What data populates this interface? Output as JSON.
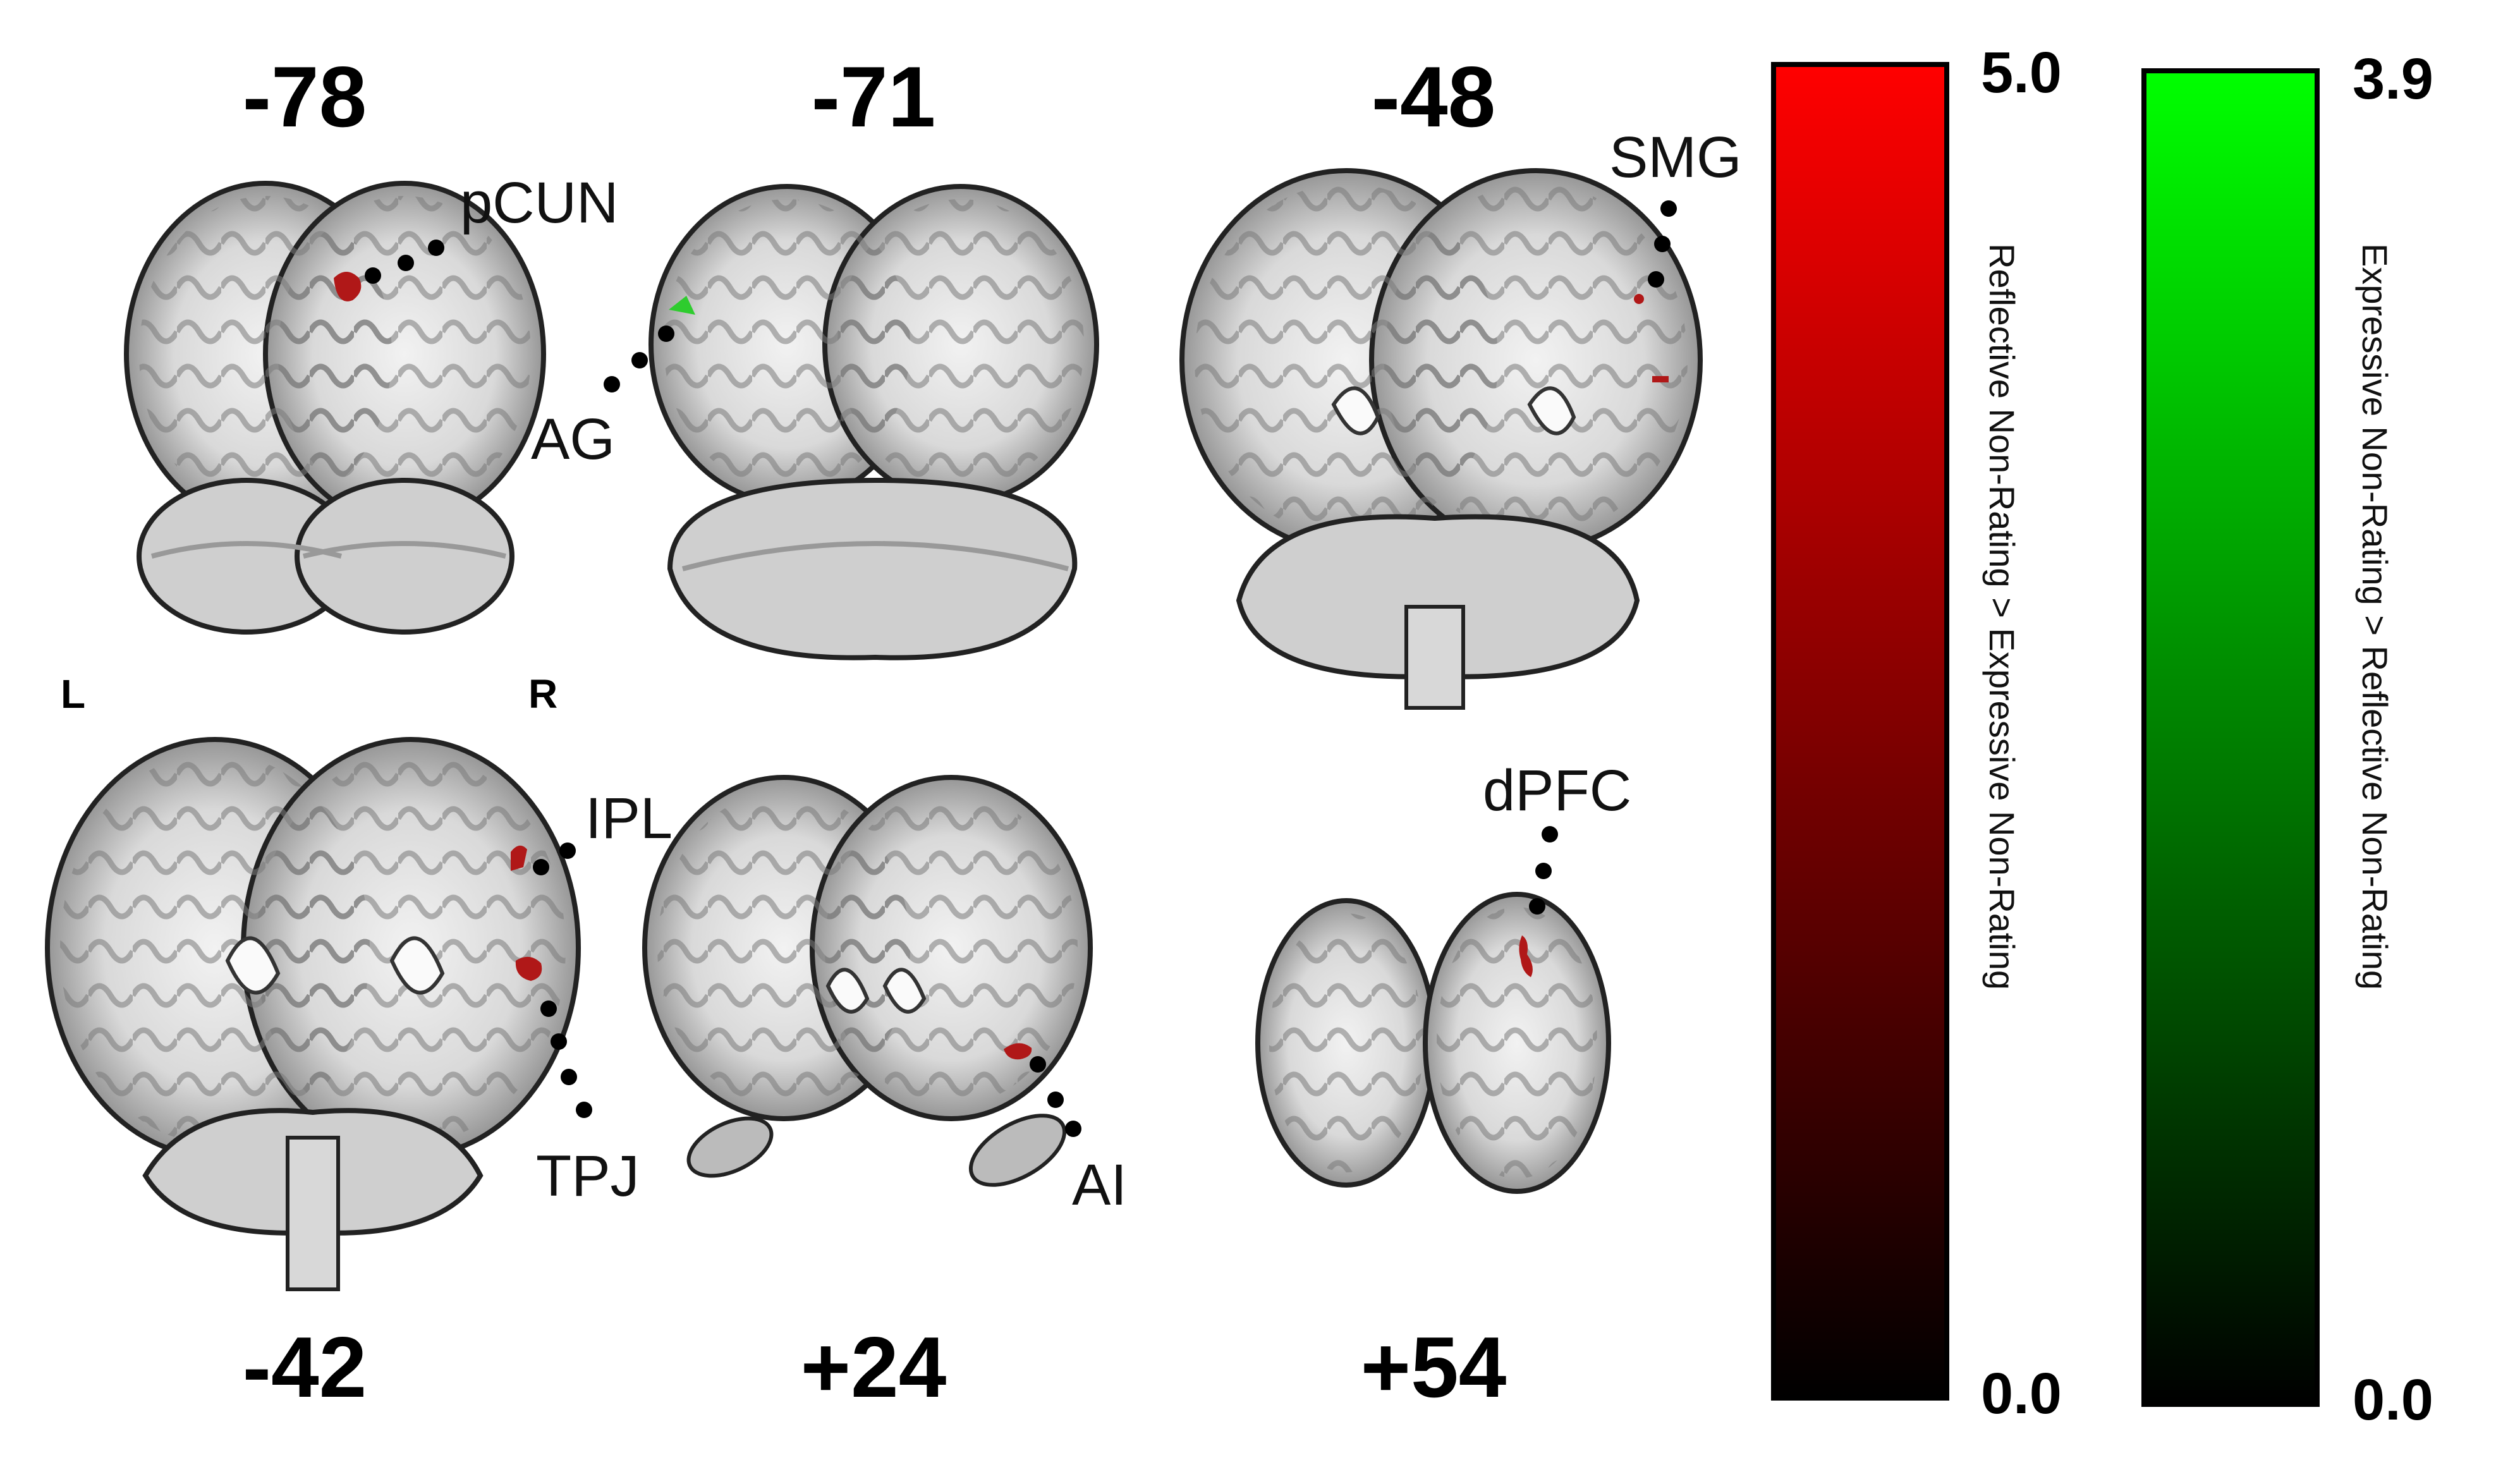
{
  "slices": [
    {
      "coord": "-78",
      "label": "pCUN"
    },
    {
      "coord": "-71",
      "label": "AG"
    },
    {
      "coord": "-48",
      "label": "SMG"
    },
    {
      "coord": "-42",
      "label_top": "IPL",
      "label_bottom": "TPJ"
    },
    {
      "coord": "+24",
      "label": "AI"
    },
    {
      "coord": "+54",
      "label": "dPFC"
    }
  ],
  "orientation": {
    "left": "L",
    "right": "R"
  },
  "colorbars": [
    {
      "title": "Reflective Non-Rating > Expressive Non-Rating",
      "max": "5.0",
      "min": "0.0",
      "color_top": "#ff0000",
      "color_bottom": "#000000"
    },
    {
      "title": "Expressive Non-Rating > Reflective Non-Rating",
      "max": "3.9",
      "min": "0.0",
      "color_top": "#00ff00",
      "color_bottom": "#000000"
    }
  ],
  "colors": {
    "activation_red": "#b01818",
    "activation_green": "#2ecc2e",
    "brain_gray": "#8a8a8a"
  }
}
